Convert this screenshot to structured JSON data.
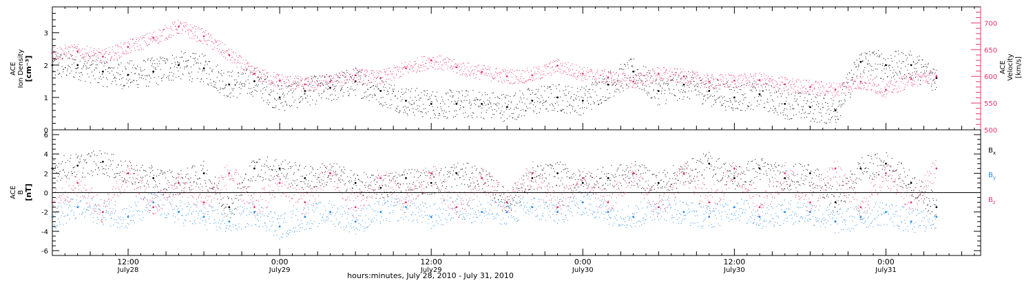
{
  "chart_data": [
    {
      "type": "scatter",
      "panel": "top",
      "xlabel": "hours:minutes, July 28, 2010 - July 31, 2010",
      "x_ticks": [
        {
          "hour": 12,
          "time": "12:00",
          "date": "July28"
        },
        {
          "hour": 24,
          "time": "0:00",
          "date": "July29"
        },
        {
          "hour": 36,
          "time": "12:00",
          "date": "July29"
        },
        {
          "hour": 48,
          "time": "0:00",
          "date": "July30"
        },
        {
          "hour": 60,
          "time": "12:00",
          "date": "July30"
        },
        {
          "hour": 72,
          "time": "0:00",
          "date": "July31"
        }
      ],
      "xlim_hours": [
        6,
        79.5
      ],
      "left_axis": {
        "label_lines": [
          "ACE",
          "Ion Density"
        ],
        "unit": "[cm⁻³]",
        "ylim": [
          0,
          3.8
        ],
        "tick_labels": [
          "0",
          "1",
          "2",
          "3"
        ],
        "tick_values": [
          0,
          1,
          2,
          3
        ]
      },
      "right_axis": {
        "label_lines": [
          "ACE",
          "Velocity"
        ],
        "unit": "[km/s]",
        "ylim": [
          500,
          730
        ],
        "tick_labels": [
          "500",
          "550",
          "600",
          "650",
          "700"
        ],
        "tick_values": [
          500,
          550,
          600,
          650,
          700
        ],
        "color": "#e8336a"
      },
      "series": [
        {
          "axis": "left",
          "color": "#000000",
          "hours": [
            6,
            8,
            10,
            12,
            14,
            16,
            18,
            20,
            22,
            24,
            26,
            28,
            30,
            32,
            34,
            36,
            38,
            40,
            42,
            44,
            46,
            48,
            50,
            52,
            54,
            56,
            58,
            60,
            62,
            64,
            66,
            68,
            70,
            72,
            74,
            76
          ],
          "values": [
            2.0,
            2.0,
            1.8,
            1.7,
            1.8,
            2.0,
            1.9,
            1.4,
            1.5,
            1.0,
            1.2,
            1.3,
            1.5,
            1.2,
            0.9,
            0.8,
            0.8,
            0.8,
            0.7,
            0.9,
            1.0,
            0.9,
            1.4,
            1.8,
            1.2,
            1.4,
            1.2,
            1.0,
            1.1,
            0.8,
            0.7,
            0.6,
            2.1,
            2.0,
            2.0,
            1.6
          ]
        },
        {
          "axis": "right",
          "color": "#e8336a",
          "hours": [
            6,
            8,
            10,
            12,
            14,
            16,
            18,
            20,
            22,
            24,
            26,
            28,
            30,
            32,
            34,
            36,
            38,
            40,
            42,
            44,
            46,
            48,
            50,
            52,
            54,
            56,
            58,
            60,
            62,
            64,
            66,
            68,
            70,
            72,
            74,
            76
          ],
          "values": [
            643,
            647,
            637,
            655,
            672,
            693,
            675,
            640,
            605,
            592,
            585,
            590,
            602,
            597,
            615,
            630,
            617,
            608,
            600,
            602,
            620,
            605,
            598,
            590,
            605,
            600,
            590,
            592,
            593,
            585,
            580,
            575,
            590,
            575,
            595,
            600
          ]
        }
      ]
    },
    {
      "type": "scatter",
      "panel": "bottom",
      "y_axis": {
        "label_lines": [
          "ACE",
          "B"
        ],
        "unit": "[nT]",
        "ylim": [
          -6.5,
          6.5
        ],
        "tick_labels": [
          "-6",
          "-4",
          "-2",
          "0",
          "2",
          "4",
          "6"
        ],
        "tick_values": [
          -6,
          -4,
          -2,
          0,
          2,
          4,
          6
        ]
      },
      "legend": {
        "placement": "right",
        "entries": [
          {
            "base": "B",
            "sub": "x",
            "color": "#000000"
          },
          {
            "base": "B",
            "sub": "y",
            "color": "#1e88e5"
          },
          {
            "base": "B",
            "sub": "z",
            "color": "#e8336a"
          }
        ]
      },
      "series": [
        {
          "name": "Bx",
          "color": "#000000",
          "hours": [
            6,
            8,
            10,
            12,
            14,
            16,
            18,
            20,
            22,
            24,
            26,
            28,
            30,
            32,
            34,
            36,
            38,
            40,
            42,
            44,
            46,
            48,
            50,
            52,
            54,
            56,
            58,
            60,
            62,
            64,
            66,
            68,
            70,
            72,
            74,
            76
          ],
          "values": [
            2.5,
            2.8,
            3.2,
            2.0,
            1.5,
            1.0,
            2.0,
            -1.5,
            2.5,
            2.5,
            1.5,
            2.0,
            1.0,
            0.5,
            1.5,
            1.0,
            2.0,
            1.5,
            -1.0,
            1.5,
            2.0,
            1.0,
            1.5,
            2.0,
            1.0,
            2.0,
            3.0,
            1.5,
            2.5,
            1.5,
            2.0,
            -1.0,
            2.5,
            3.0,
            1.0,
            -1.5
          ]
        },
        {
          "name": "By",
          "color": "#1e88e5",
          "hours": [
            6,
            8,
            10,
            12,
            14,
            16,
            18,
            20,
            22,
            24,
            26,
            28,
            30,
            32,
            34,
            36,
            38,
            40,
            42,
            44,
            46,
            48,
            50,
            52,
            54,
            56,
            58,
            60,
            62,
            64,
            66,
            68,
            70,
            72,
            74,
            76
          ],
          "values": [
            -2.5,
            -1.5,
            -2.0,
            -2.5,
            -1.0,
            -2.0,
            -2.5,
            -3.0,
            -2.0,
            -3.5,
            -2.5,
            -2.0,
            -3.0,
            -2.0,
            -1.5,
            -2.5,
            -1.5,
            -2.0,
            -2.0,
            -1.5,
            -2.0,
            -1.0,
            -2.0,
            -2.5,
            -1.5,
            -2.0,
            -2.5,
            -1.5,
            -2.5,
            -2.0,
            -2.0,
            -3.0,
            -2.5,
            -2.0,
            -3.0,
            -2.5
          ]
        },
        {
          "name": "Bz",
          "color": "#e8336a",
          "hours": [
            6,
            8,
            10,
            12,
            14,
            16,
            18,
            20,
            22,
            24,
            26,
            28,
            30,
            32,
            34,
            36,
            38,
            40,
            42,
            44,
            46,
            48,
            50,
            52,
            54,
            56,
            58,
            60,
            62,
            64,
            66,
            68,
            70,
            72,
            74,
            76
          ],
          "values": [
            -1.0,
            1.0,
            -2.0,
            2.0,
            -1.5,
            1.0,
            -1.0,
            2.0,
            -1.5,
            1.0,
            -1.0,
            2.0,
            -1.5,
            1.5,
            -1.0,
            2.0,
            -1.5,
            1.5,
            -1.0,
            2.0,
            -1.5,
            1.5,
            -1.0,
            2.0,
            -1.5,
            2.0,
            -1.0,
            2.5,
            -1.5,
            2.0,
            -1.0,
            2.5,
            -1.5,
            2.0,
            -1.0,
            2.5
          ]
        }
      ]
    }
  ]
}
